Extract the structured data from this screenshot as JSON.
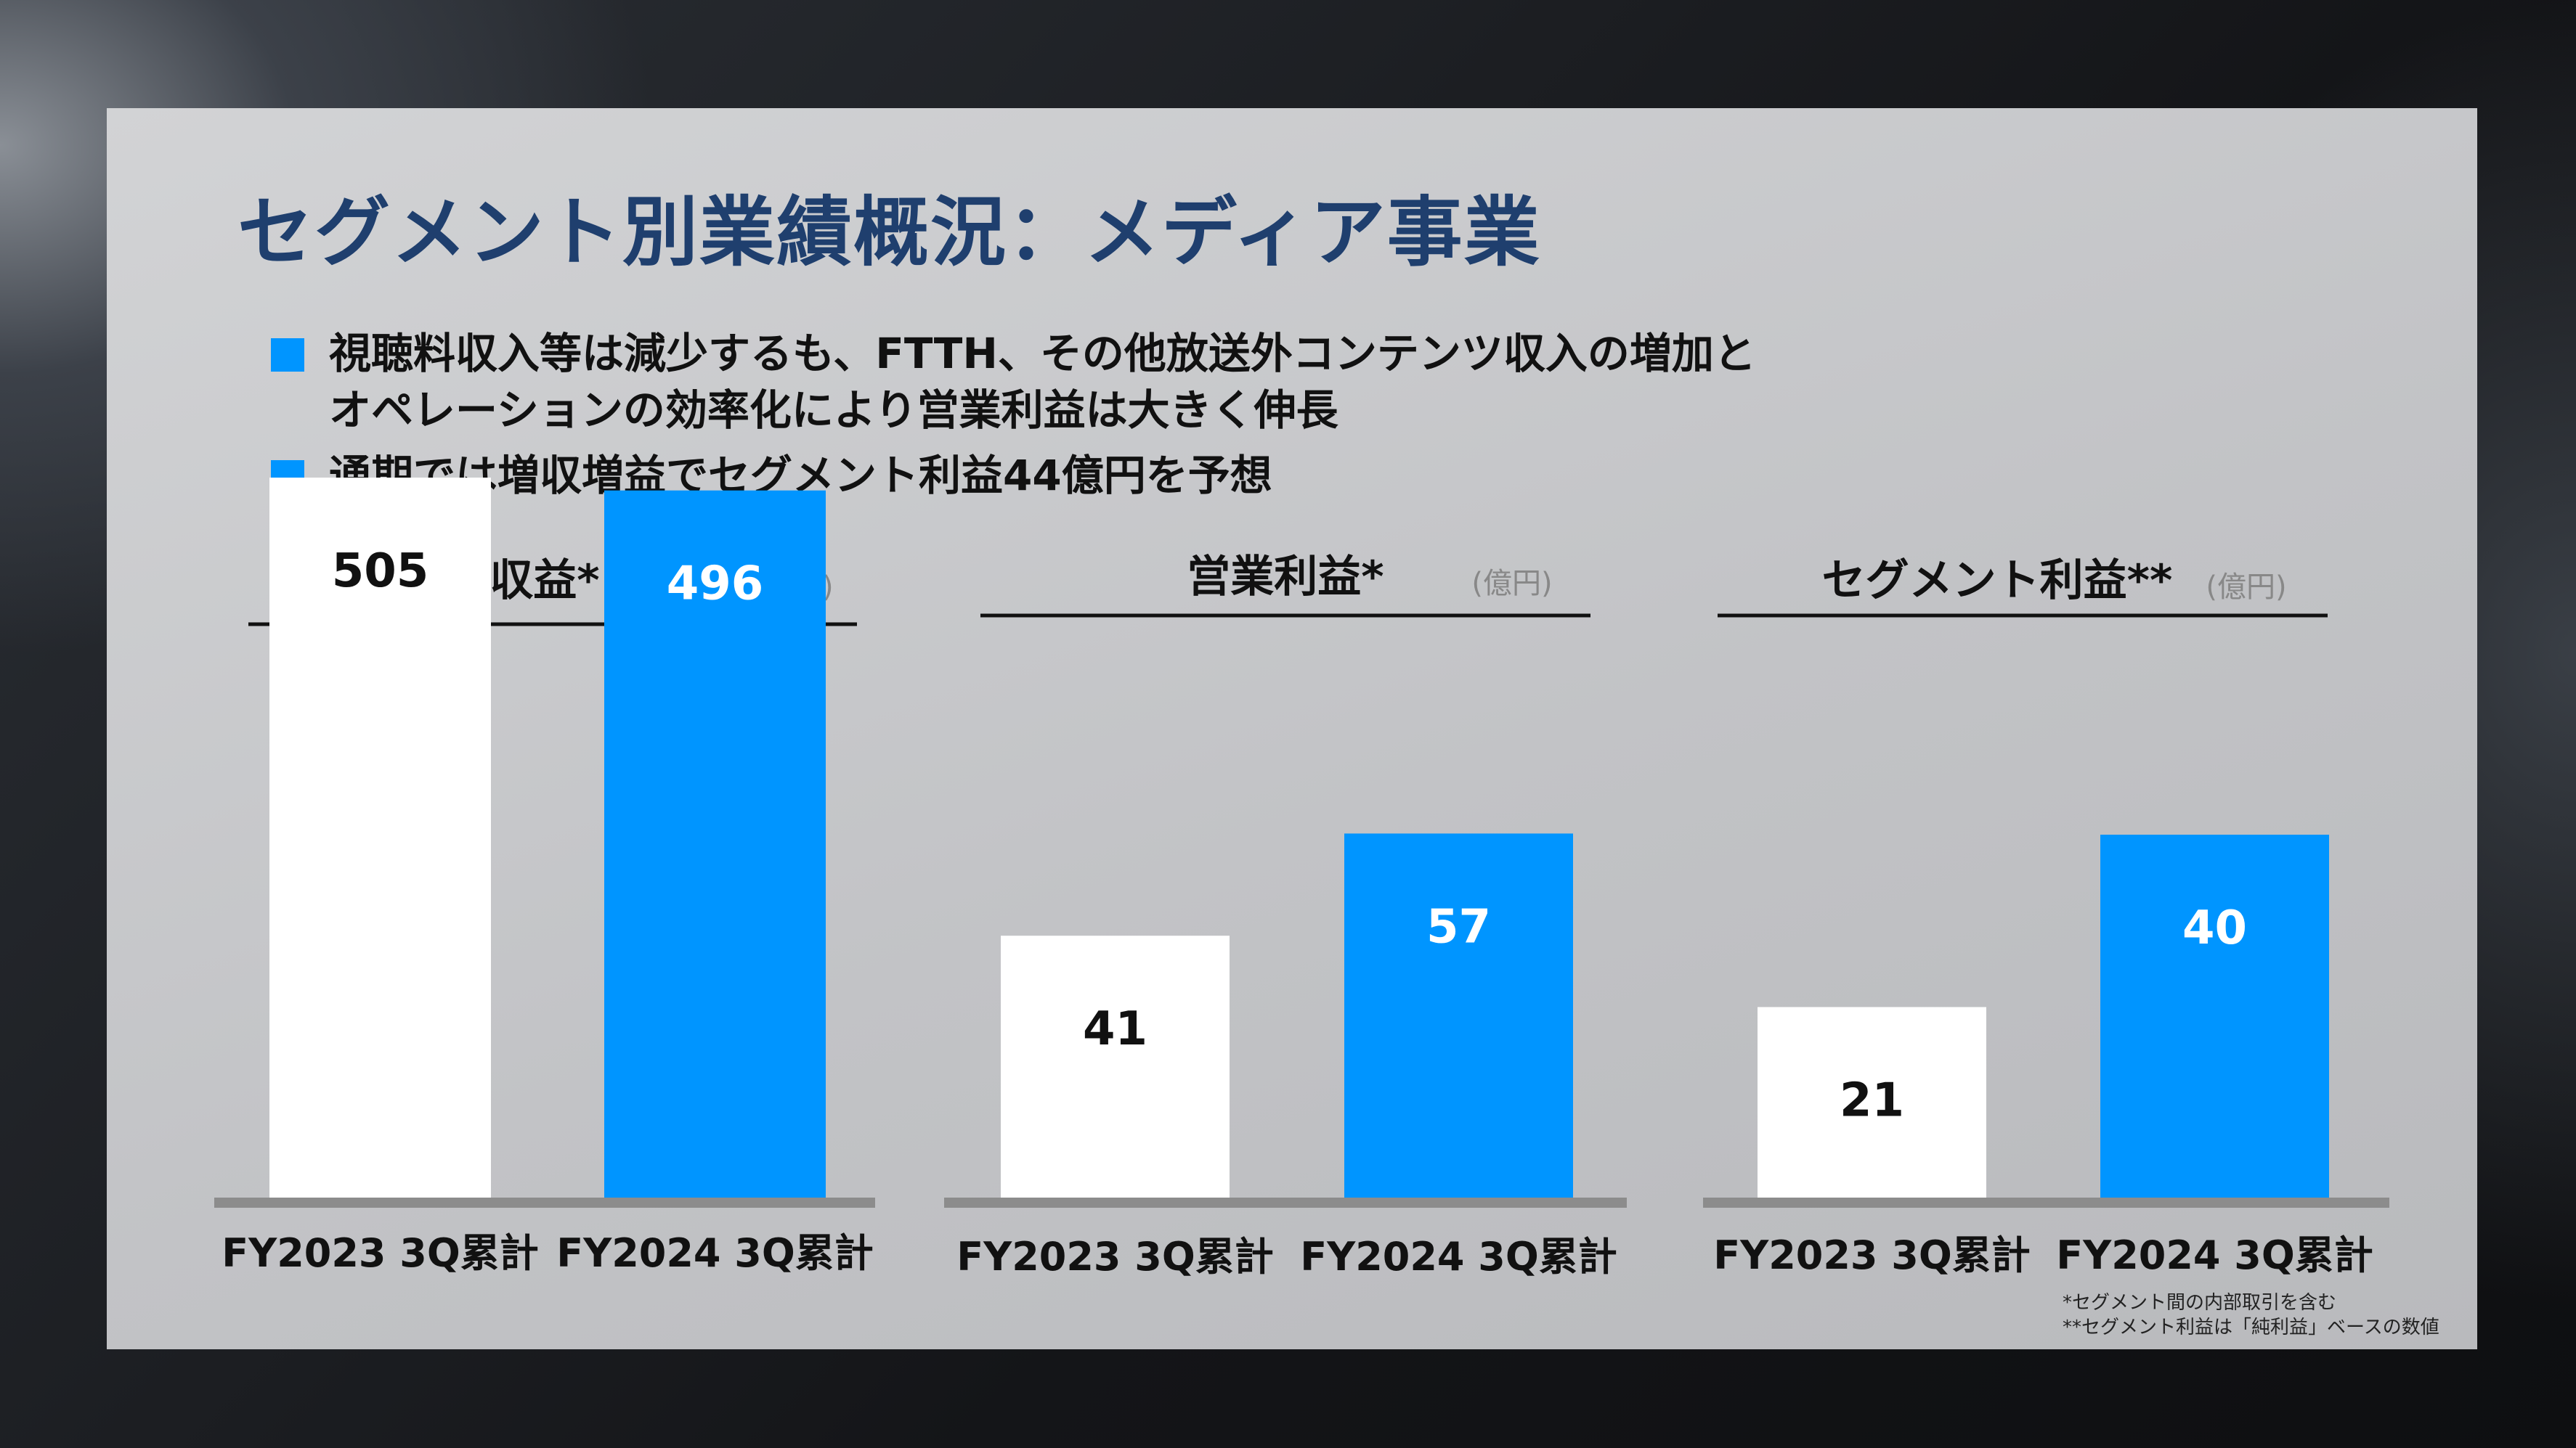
{
  "title": "セグメント別業績概況：メディア事業",
  "bullets": [
    {
      "lines": [
        "視聴料収入等は減少するも、FTTH、その他放送外コンテンツ収入の増加と",
        "オペレーションの効率化により営業利益は大きく伸長"
      ]
    },
    {
      "lines": [
        "通期では増収増益でセグメント利益44億円を予想"
      ]
    }
  ],
  "unit_label": "(億円)",
  "colors": {
    "prev": "#ffffff",
    "curr": "#0095ff",
    "axis": "#8c8c8c",
    "title": "#1f3f6e"
  },
  "chart_data": [
    {
      "type": "bar",
      "title": "営業収益*",
      "unit": "(億円)",
      "categories": [
        "FY2023 3Q累計",
        "FY2024 3Q累計"
      ],
      "values": [
        505,
        496
      ],
      "ylim": [
        0,
        560
      ]
    },
    {
      "type": "bar",
      "title": "営業利益*",
      "unit": "(億円)",
      "categories": [
        "FY2023 3Q累計",
        "FY2024 3Q累計"
      ],
      "values": [
        41,
        57
      ],
      "ylim": [
        0,
        125
      ]
    },
    {
      "type": "bar",
      "title": "セグメント利益**",
      "unit": "(億円)",
      "categories": [
        "FY2023 3Q累計",
        "FY2024 3Q累計"
      ],
      "values": [
        21,
        40
      ],
      "ylim": [
        0,
        88
      ]
    }
  ],
  "footnotes": [
    "*セグメント間の内部取引を含む",
    "**セグメント利益は「純利益」ベースの数値"
  ]
}
